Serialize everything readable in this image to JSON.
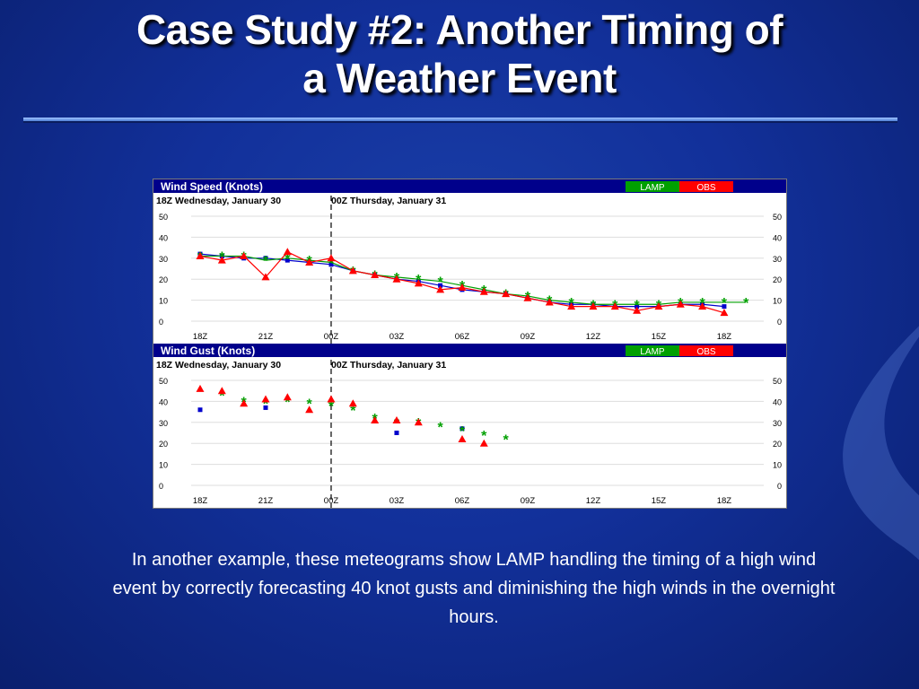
{
  "slide": {
    "title": "Case Study #2: Another Timing of a Weather Event",
    "title_line1": "Case Study #2: Another Timing of",
    "title_line2": "a Weather Event",
    "caption": "In another example, these meteograms show LAMP handling the timing of a high wind event by correctly forecasting 40 knot gusts and diminishing the high winds in the overnight hours."
  },
  "colors": {
    "lamp": "#00a000",
    "obs": "#ff0000",
    "blue": "#0000cc",
    "panel_header": "#00008b"
  },
  "chart_data": [
    {
      "type": "line",
      "title": "Wind Speed (Knots)",
      "legend": [
        "LAMP",
        "OBS"
      ],
      "legend_placement": "top-right",
      "date_left": "18Z Wednesday, January 30",
      "date_right": "00Z Thursday, January 31",
      "x_tick_labels": [
        "18Z",
        "21Z",
        "00Z",
        "03Z",
        "06Z",
        "09Z",
        "12Z",
        "15Z",
        "18Z"
      ],
      "y_tick_labels": [
        "50",
        "40",
        "30",
        "20",
        "10",
        "0"
      ],
      "ylim": [
        0,
        50
      ],
      "grid": true,
      "hours_from_start": [
        0,
        1,
        2,
        3,
        4,
        5,
        6,
        7,
        8,
        9,
        10,
        11,
        12,
        13,
        14,
        15,
        16,
        17,
        18,
        19,
        20,
        21,
        22,
        23,
        24,
        25
      ],
      "series": [
        {
          "marker": "square",
          "values": [
            32,
            31,
            30,
            30,
            29,
            28,
            27,
            24,
            22,
            20,
            19,
            17,
            15,
            14,
            13,
            11,
            9,
            8,
            8,
            7,
            7,
            7,
            8,
            8,
            7,
            null
          ]
        },
        {
          "marker": "star",
          "values": [
            31,
            31,
            31,
            29,
            30,
            29,
            28,
            24,
            22,
            21,
            20,
            19,
            17,
            15,
            13,
            12,
            10,
            9,
            8,
            8,
            8,
            8,
            9,
            9,
            9,
            9
          ]
        },
        {
          "marker": "triangle",
          "values": [
            31,
            29,
            31,
            21,
            33,
            28,
            30,
            24,
            22,
            20,
            18,
            15,
            16,
            14,
            13,
            11,
            9,
            7,
            7,
            7,
            5,
            7,
            8,
            7,
            4,
            null
          ]
        }
      ]
    },
    {
      "type": "scatter",
      "title": "Wind Gust (Knots)",
      "legend": [
        "LAMP",
        "OBS"
      ],
      "legend_placement": "top-right",
      "date_left": "18Z Wednesday, January 30",
      "date_right": "00Z Thursday, January 31",
      "x_tick_labels": [
        "18Z",
        "21Z",
        "00Z",
        "03Z",
        "06Z",
        "09Z",
        "12Z",
        "15Z",
        "18Z"
      ],
      "y_tick_labels": [
        "50",
        "40",
        "30",
        "20",
        "10",
        "0"
      ],
      "ylim": [
        0,
        50
      ],
      "grid": true,
      "hours_from_start": [
        0,
        1,
        2,
        3,
        4,
        5,
        6,
        7,
        8,
        9,
        10,
        11,
        12,
        13,
        14,
        15,
        16,
        17,
        18,
        19,
        20,
        21,
        22,
        23,
        24,
        25
      ],
      "series": [
        {
          "marker": "square",
          "values": [
            36,
            null,
            null,
            37,
            null,
            null,
            null,
            null,
            null,
            25,
            null,
            null,
            27,
            null,
            null,
            null,
            null,
            null,
            null,
            null,
            null,
            null,
            null,
            null,
            null,
            null
          ]
        },
        {
          "marker": "star",
          "values": [
            null,
            43,
            40,
            39,
            40,
            39,
            38,
            36,
            32,
            30,
            30,
            28,
            26,
            24,
            22,
            null,
            null,
            null,
            null,
            null,
            null,
            null,
            null,
            null,
            null,
            null
          ]
        },
        {
          "marker": "triangle",
          "values": [
            46,
            45,
            39,
            41,
            42,
            36,
            41,
            39,
            31,
            31,
            30,
            null,
            22,
            20,
            null,
            null,
            null,
            null,
            null,
            null,
            null,
            null,
            null,
            null,
            null,
            null
          ]
        }
      ]
    }
  ]
}
